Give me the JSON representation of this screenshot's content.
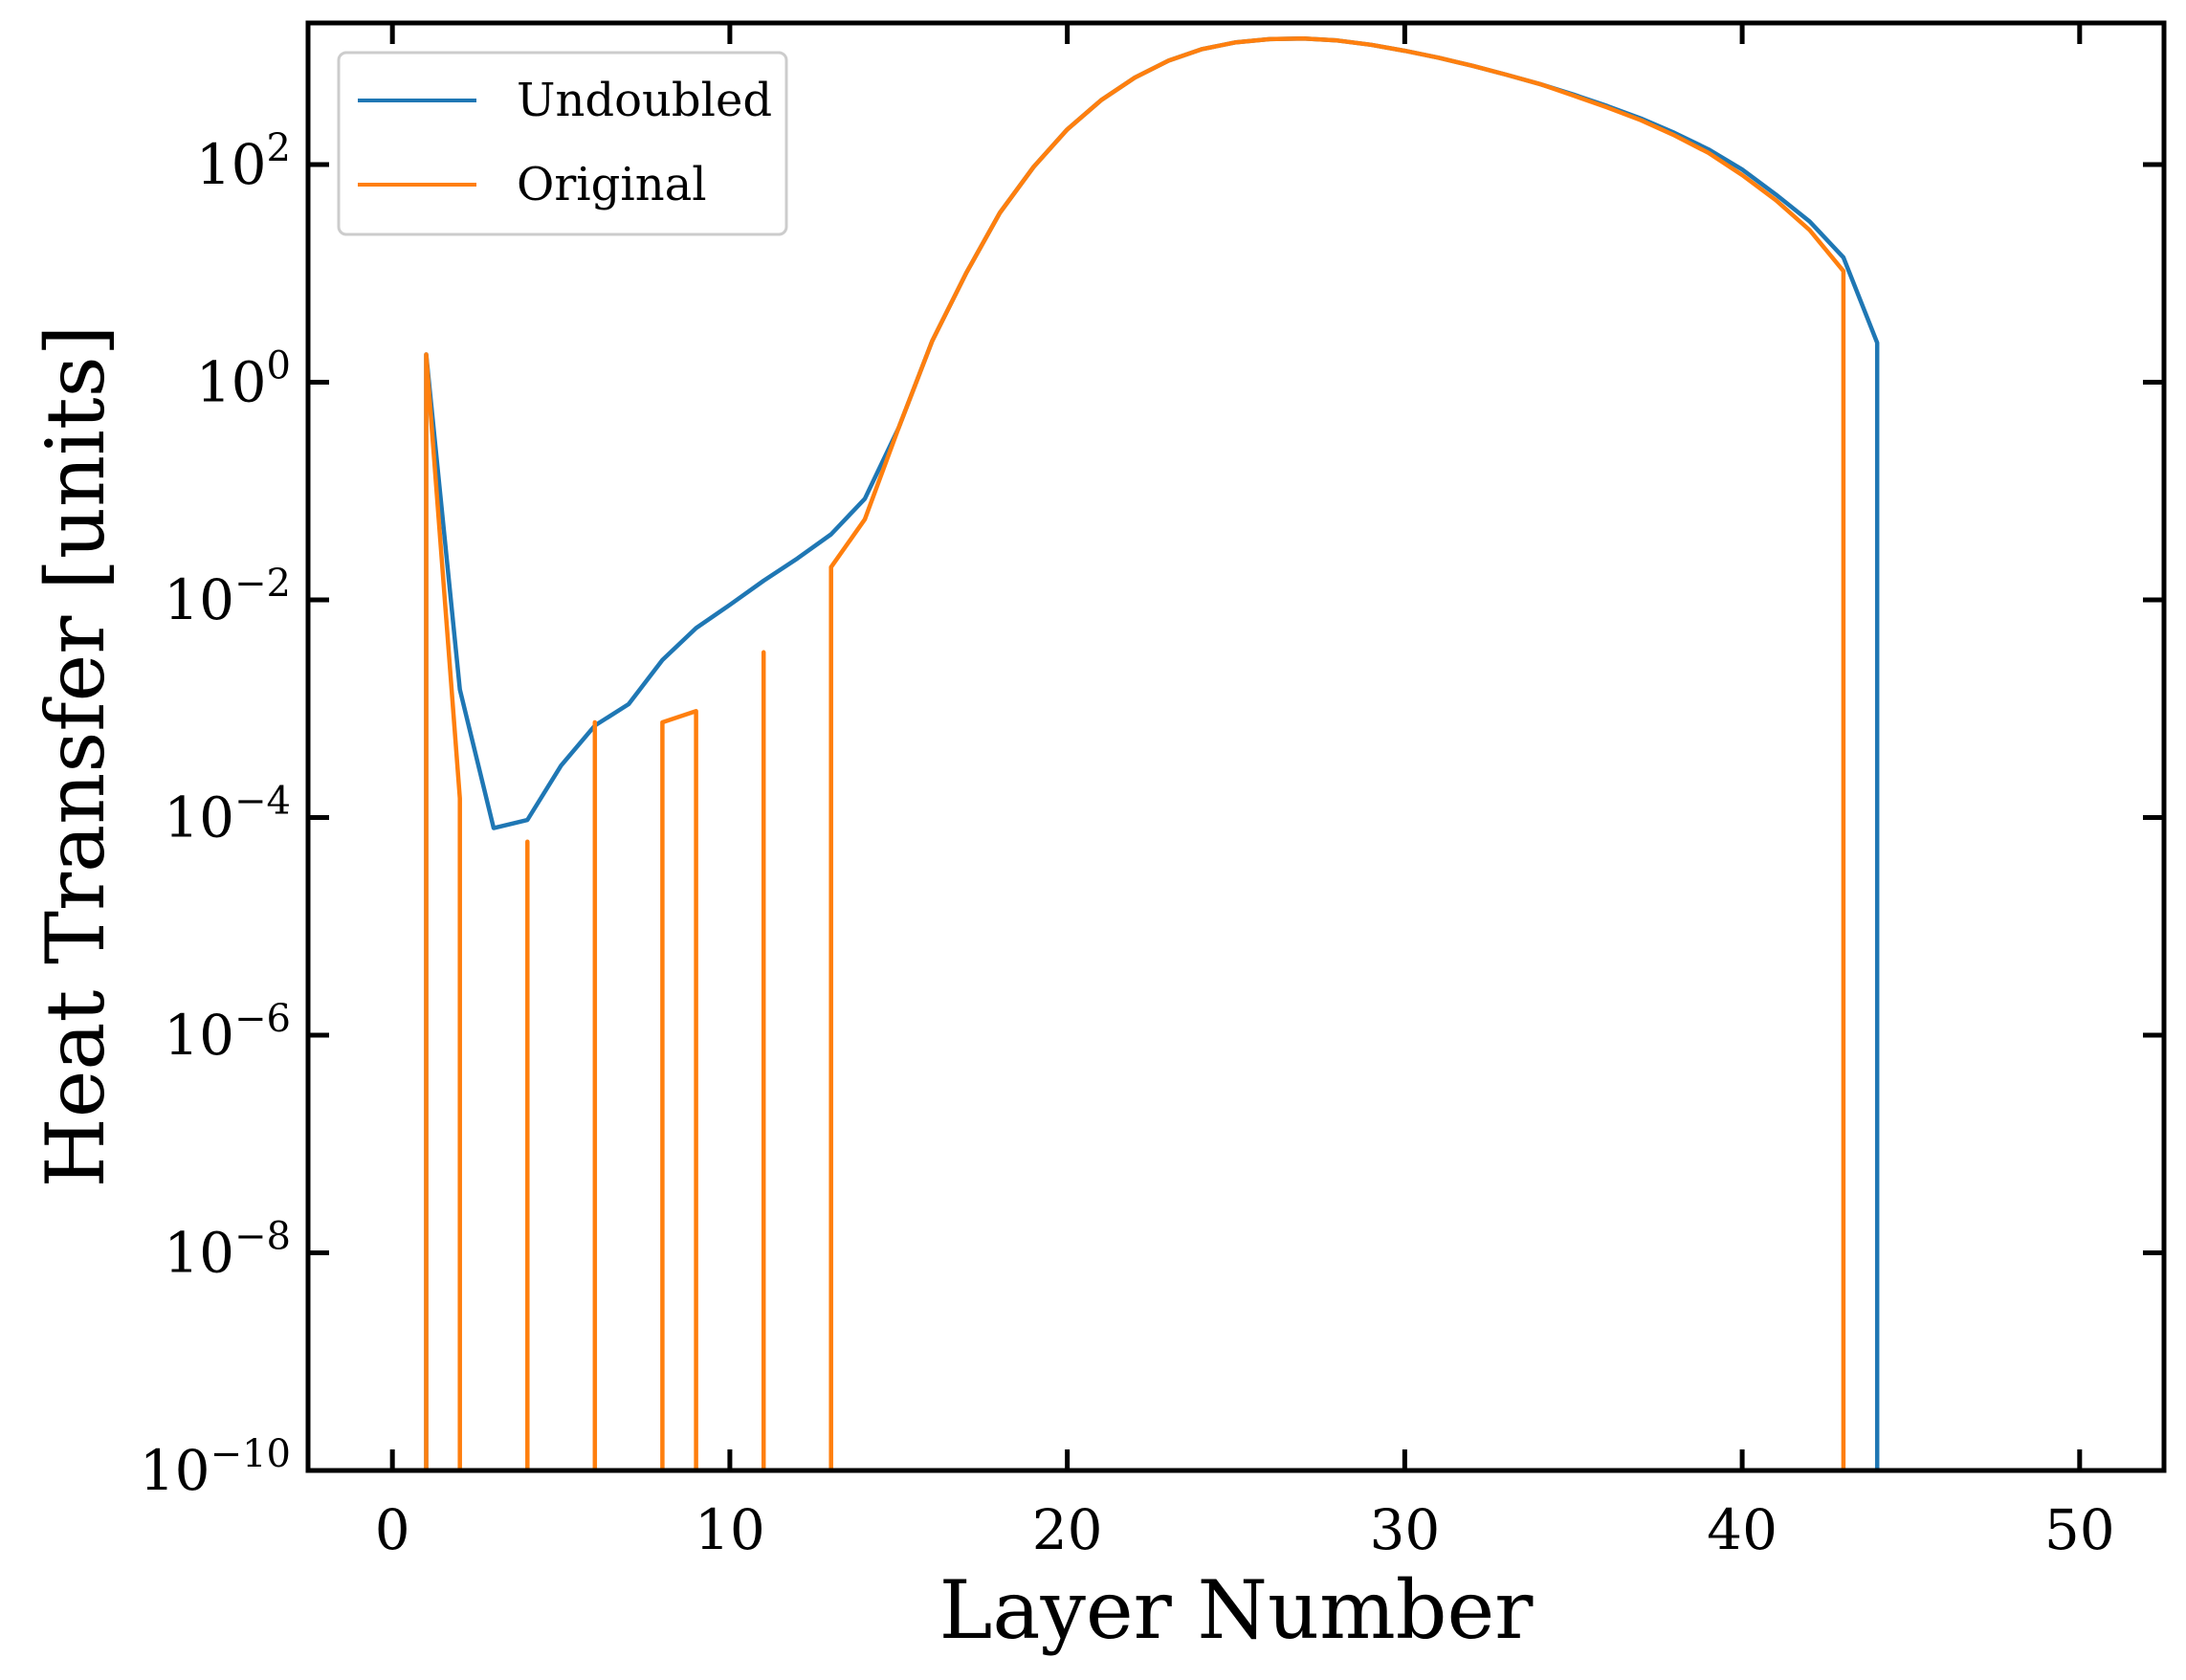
{
  "chart_data": {
    "type": "line",
    "title": "",
    "xlabel": "Layer Number",
    "ylabel": "Heat Transfer [units]",
    "xlim": [
      -2.5,
      52.5
    ],
    "ylim": [
      1e-10,
      2000
    ],
    "yscale": "log",
    "grid": false,
    "legend_position": "top-left",
    "x_ticks": [
      0,
      10,
      20,
      30,
      40,
      50
    ],
    "x_tick_labels": [
      "0",
      "10",
      "20",
      "30",
      "40",
      "50"
    ],
    "y_ticks": [
      1e-10,
      1e-08,
      1e-06,
      0.0001,
      0.01,
      1,
      100
    ],
    "y_tick_labels": [
      {
        "base": "10",
        "exp": "−10"
      },
      {
        "base": "10",
        "exp": "−8"
      },
      {
        "base": "10",
        "exp": "−6"
      },
      {
        "base": "10",
        "exp": "−4"
      },
      {
        "base": "10",
        "exp": "−2"
      },
      {
        "base": "10",
        "exp": "0"
      },
      {
        "base": "10",
        "exp": "2"
      }
    ],
    "series": [
      {
        "name": "Undoubled",
        "color": "#1f77b4",
        "points": [
          [
            1,
            1e-10
          ],
          [
            1,
            1.8
          ],
          [
            2,
            0.0015
          ],
          [
            3,
            8e-05
          ],
          [
            4,
            9.5e-05
          ],
          [
            5,
            0.0003
          ],
          [
            6,
            0.0007
          ],
          [
            7,
            0.0011
          ],
          [
            8,
            0.0028
          ],
          [
            9,
            0.0055
          ],
          [
            10,
            0.009
          ],
          [
            11,
            0.015
          ],
          [
            12,
            0.024
          ],
          [
            13,
            0.04
          ],
          [
            14,
            0.085
          ],
          [
            15,
            0.38
          ],
          [
            16,
            2.4
          ],
          [
            17,
            10
          ],
          [
            18,
            36
          ],
          [
            19,
            95
          ],
          [
            20,
            210
          ],
          [
            21,
            390
          ],
          [
            22,
            630
          ],
          [
            23,
            900
          ],
          [
            24,
            1150
          ],
          [
            25,
            1330
          ],
          [
            26,
            1420
          ],
          [
            27,
            1440
          ],
          [
            28,
            1380
          ],
          [
            29,
            1260
          ],
          [
            30,
            1110
          ],
          [
            31,
            960
          ],
          [
            32,
            810
          ],
          [
            33,
            670
          ],
          [
            34,
            550
          ],
          [
            35,
            440
          ],
          [
            36,
            345
          ],
          [
            37,
            265
          ],
          [
            38,
            195
          ],
          [
            39,
            138
          ],
          [
            40,
            90
          ],
          [
            41,
            53
          ],
          [
            42,
            30
          ],
          [
            43,
            14
          ],
          [
            44,
            2.3
          ],
          [
            44,
            1e-10
          ]
        ]
      },
      {
        "name": "Original",
        "color": "#ff7f0e",
        "points": [
          [
            1,
            1e-10
          ],
          [
            1,
            1.8
          ],
          [
            2,
            0.00015
          ],
          [
            2,
            1e-10
          ],
          [
            4,
            1e-10
          ],
          [
            4,
            6e-05
          ],
          [
            4,
            1e-10
          ],
          [
            6,
            1e-10
          ],
          [
            6,
            0.00075
          ],
          [
            6,
            1e-10
          ],
          [
            8,
            1e-10
          ],
          [
            8,
            0.00075
          ],
          [
            9,
            0.00095
          ],
          [
            9,
            1e-10
          ],
          [
            11,
            1e-10
          ],
          [
            11,
            0.0033
          ],
          [
            11,
            1e-10
          ],
          [
            13,
            1e-10
          ],
          [
            13,
            0.02
          ],
          [
            14,
            0.055
          ],
          [
            15,
            0.38
          ],
          [
            16,
            2.4
          ],
          [
            17,
            10
          ],
          [
            18,
            36
          ],
          [
            19,
            95
          ],
          [
            20,
            210
          ],
          [
            21,
            390
          ],
          [
            22,
            630
          ],
          [
            23,
            900
          ],
          [
            24,
            1150
          ],
          [
            25,
            1330
          ],
          [
            26,
            1420
          ],
          [
            27,
            1440
          ],
          [
            28,
            1380
          ],
          [
            29,
            1260
          ],
          [
            30,
            1110
          ],
          [
            31,
            960
          ],
          [
            32,
            810
          ],
          [
            33,
            670
          ],
          [
            34,
            550
          ],
          [
            35,
            430
          ],
          [
            36,
            335
          ],
          [
            37,
            255
          ],
          [
            38,
            185
          ],
          [
            39,
            128
          ],
          [
            40,
            80
          ],
          [
            41,
            47
          ],
          [
            42,
            25
          ],
          [
            43,
            10.5
          ],
          [
            43,
            1e-10
          ]
        ]
      }
    ]
  }
}
